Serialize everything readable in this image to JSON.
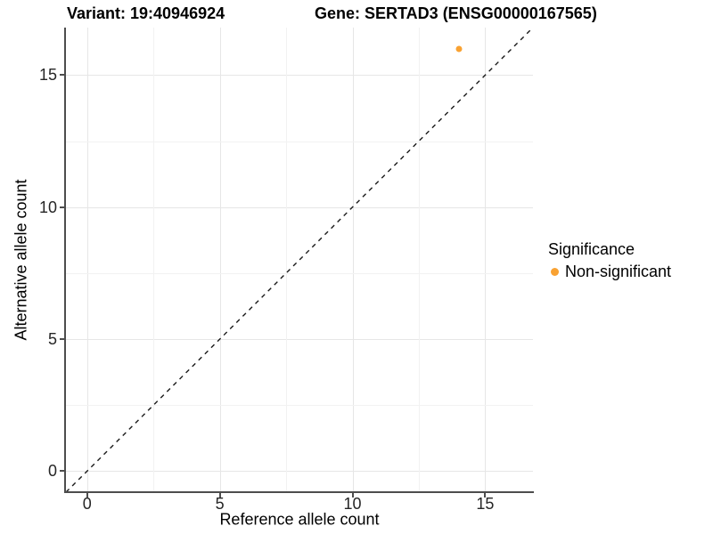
{
  "figure": {
    "title_variant": "Variant: 19:40946924",
    "title_gene": "Gene: SERTAD3 (ENSG00000167565)"
  },
  "chart_data": {
    "type": "scatter",
    "title": "Variant: 19:40946924   Gene: SERTAD3 (ENSG00000167565)",
    "xlabel": "Reference allele count",
    "ylabel": "Alternative allele count",
    "xlim": [
      -0.8,
      16.8
    ],
    "ylim": [
      -0.8,
      16.8
    ],
    "x_major_ticks": [
      0,
      5,
      10,
      15
    ],
    "y_major_ticks": [
      0,
      5,
      10,
      15
    ],
    "x_minor_gridlines": [
      2.5,
      7.5,
      12.5
    ],
    "y_minor_gridlines": [
      2.5,
      7.5,
      12.5
    ],
    "grid": "major+minor",
    "series": [
      {
        "name": "Non-significant",
        "color": "#F9A232",
        "points": [
          {
            "x": 14,
            "y": 16
          }
        ]
      }
    ],
    "reference_line": {
      "kind": "identity",
      "equation": "y = x",
      "style": "dashed",
      "color": "#1a1a1a"
    },
    "legend": {
      "title": "Significance",
      "position": "right",
      "entries": [
        {
          "label": "Non-significant",
          "color": "#F9A232"
        }
      ]
    }
  },
  "colors": {
    "background": "#FFFFFF",
    "grid_major": "#E6E6E6",
    "grid_minor": "#F2F2F2",
    "axis_line": "#4D4D4D",
    "text": "#1A1A1A",
    "point": "#F9A232"
  }
}
